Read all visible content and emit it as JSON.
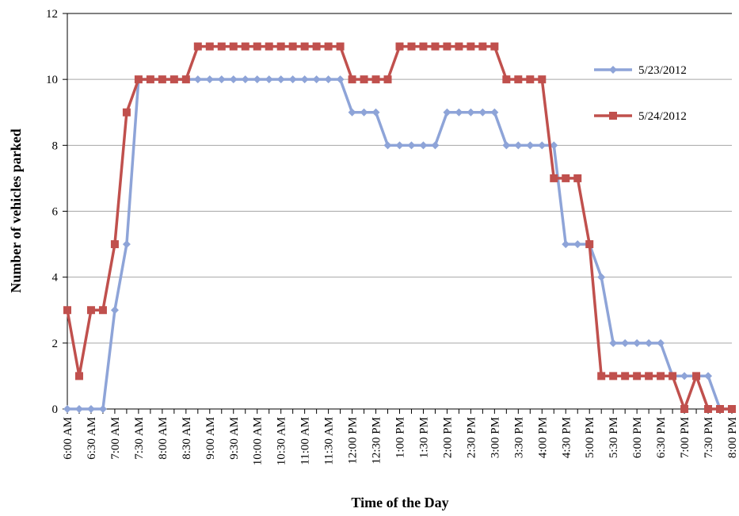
{
  "chart_data": {
    "type": "line",
    "title": "",
    "xlabel": "Time of the Day",
    "ylabel": "Number of vehicles parked",
    "ylim": [
      0,
      12
    ],
    "yticks": [
      0,
      2,
      4,
      6,
      8,
      10,
      12
    ],
    "grid": true,
    "legend_position": "right",
    "x": [
      "6:00 AM",
      "6:15 AM",
      "6:30 AM",
      "6:45 AM",
      "7:00 AM",
      "7:15 AM",
      "7:30 AM",
      "7:45 AM",
      "8:00 AM",
      "8:15 AM",
      "8:30 AM",
      "8:45 AM",
      "9:00 AM",
      "9:15 AM",
      "9:30 AM",
      "9:45 AM",
      "10:00 AM",
      "10:15 AM",
      "10:30 AM",
      "10:45 AM",
      "11:00 AM",
      "11:15 AM",
      "11:30 AM",
      "11:45 AM",
      "12:00 PM",
      "12:15 PM",
      "12:30 PM",
      "12:45 PM",
      "1:00 PM",
      "1:15 PM",
      "1:30 PM",
      "1:45 PM",
      "2:00 PM",
      "2:15 PM",
      "2:30 PM",
      "2:45 PM",
      "3:00 PM",
      "3:15 PM",
      "3:30 PM",
      "3:45 PM",
      "4:00 PM",
      "4:15 PM",
      "4:30 PM",
      "4:45 PM",
      "5:00 PM",
      "5:15 PM",
      "5:30 PM",
      "5:45 PM",
      "6:00 PM",
      "6:15 PM",
      "6:30 PM",
      "6:45 PM",
      "7:00 PM",
      "7:15 PM",
      "7:30 PM",
      "7:45 PM",
      "8:00 PM"
    ],
    "x_tick_labels": [
      "6:00 AM",
      "6:30 AM",
      "7:00 AM",
      "7:30 AM",
      "8:00 AM",
      "8:30 AM",
      "9:00 AM",
      "9:30 AM",
      "10:00 AM",
      "10:30 AM",
      "11:00 AM",
      "11:30 AM",
      "12:00 PM",
      "12:30 PM",
      "1:00 PM",
      "1:30 PM",
      "2:00 PM",
      "2:30 PM",
      "3:00 PM",
      "3:30 PM",
      "4:00 PM",
      "4:30 PM",
      "5:00 PM",
      "5:30 PM",
      "6:00 PM",
      "6:30 PM",
      "7:00 PM",
      "7:30 PM",
      "8:00 PM"
    ],
    "series": [
      {
        "name": "5/23/2012",
        "color": "#8EA4D8",
        "marker": "diamond",
        "values": [
          0,
          0,
          0,
          0,
          3,
          5,
          10,
          10,
          10,
          10,
          10,
          10,
          10,
          10,
          10,
          10,
          10,
          10,
          10,
          10,
          10,
          10,
          10,
          10,
          9,
          9,
          9,
          8,
          8,
          8,
          8,
          8,
          9,
          9,
          9,
          9,
          9,
          8,
          8,
          8,
          8,
          8,
          5,
          5,
          5,
          4,
          2,
          2,
          2,
          2,
          2,
          1,
          1,
          1,
          1,
          0,
          0
        ]
      },
      {
        "name": "5/24/2012",
        "color": "#C0504D",
        "marker": "square",
        "values": [
          3,
          1,
          3,
          3,
          5,
          9,
          10,
          10,
          10,
          10,
          10,
          11,
          11,
          11,
          11,
          11,
          11,
          11,
          11,
          11,
          11,
          11,
          11,
          11,
          10,
          10,
          10,
          10,
          11,
          11,
          11,
          11,
          11,
          11,
          11,
          11,
          11,
          10,
          10,
          10,
          10,
          7,
          7,
          7,
          5,
          1,
          1,
          1,
          1,
          1,
          1,
          1,
          0,
          1,
          0,
          0,
          0
        ]
      }
    ]
  }
}
